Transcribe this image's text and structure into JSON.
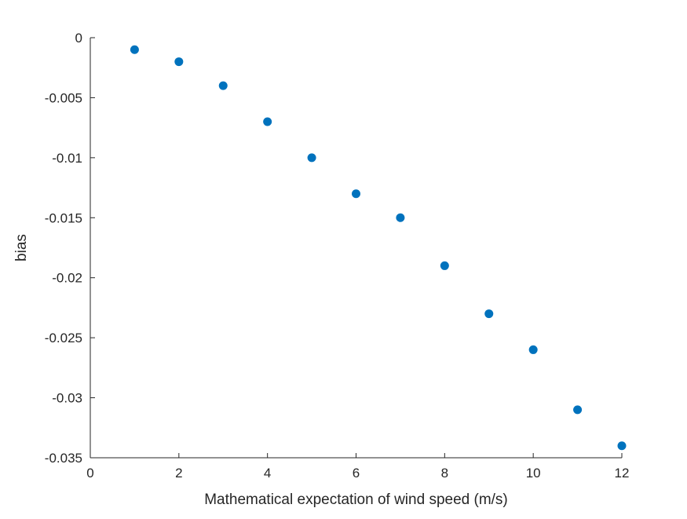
{
  "chart_data": {
    "type": "scatter",
    "title": "",
    "xlabel": "Mathematical expectation of wind speed (m/s)",
    "ylabel": "bias",
    "xlim": [
      0,
      12
    ],
    "ylim": [
      -0.035,
      0
    ],
    "x_ticks": [
      0,
      2,
      4,
      6,
      8,
      10,
      12
    ],
    "x_tick_labels": [
      "0",
      "2",
      "4",
      "6",
      "8",
      "10",
      "12"
    ],
    "y_ticks": [
      0,
      -0.005,
      -0.01,
      -0.015,
      -0.02,
      -0.025,
      -0.03,
      -0.035
    ],
    "y_tick_labels": [
      "0",
      "-0.005",
      "-0.01",
      "-0.015",
      "-0.02",
      "-0.025",
      "-0.03",
      "-0.035"
    ],
    "grid": false,
    "legend": "none",
    "marker_color": "#0072BD",
    "series": [
      {
        "x": [
          1,
          2,
          3,
          4,
          5,
          6,
          7,
          8,
          9,
          10,
          11,
          12
        ],
        "y": [
          -0.001,
          -0.002,
          -0.004,
          -0.007,
          -0.01,
          -0.013,
          -0.015,
          -0.019,
          -0.023,
          -0.026,
          -0.031,
          -0.034
        ]
      }
    ]
  }
}
